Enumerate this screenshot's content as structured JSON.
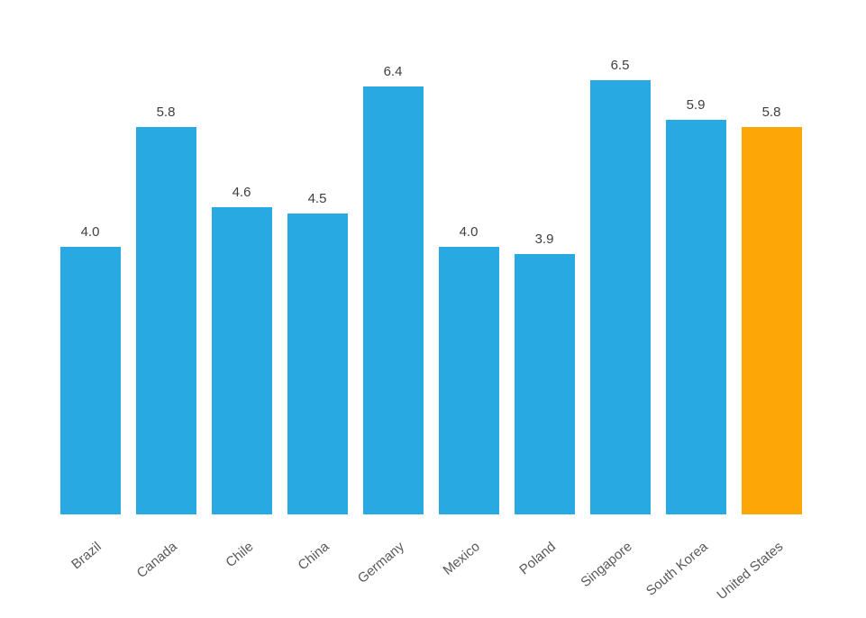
{
  "chart_data": {
    "type": "bar",
    "title": "",
    "xlabel": "",
    "ylabel": "",
    "categories": [
      "Brazil",
      "Canada",
      "Chile",
      "China",
      "Germany",
      "Mexico",
      "Poland",
      "Singapore",
      "South Korea",
      "United States"
    ],
    "values": [
      4.0,
      5.8,
      4.6,
      4.5,
      6.4,
      4.0,
      3.9,
      6.5,
      5.9,
      5.8
    ],
    "value_labels": [
      "4.0",
      "5.8",
      "4.6",
      "4.5",
      "6.4",
      "4.0",
      "3.9",
      "6.5",
      "5.9",
      "5.8"
    ],
    "ylim": [
      0,
      7.7
    ],
    "grid": false,
    "legend": "none",
    "tick_rotation_deg": -40,
    "highlight_category": "United States",
    "colors": {
      "bar": "#29A9E1",
      "highlight": "#FCA608",
      "value_label_text": "#3f3f3f",
      "category_label_text": "#595959",
      "background": "#ffffff"
    }
  }
}
